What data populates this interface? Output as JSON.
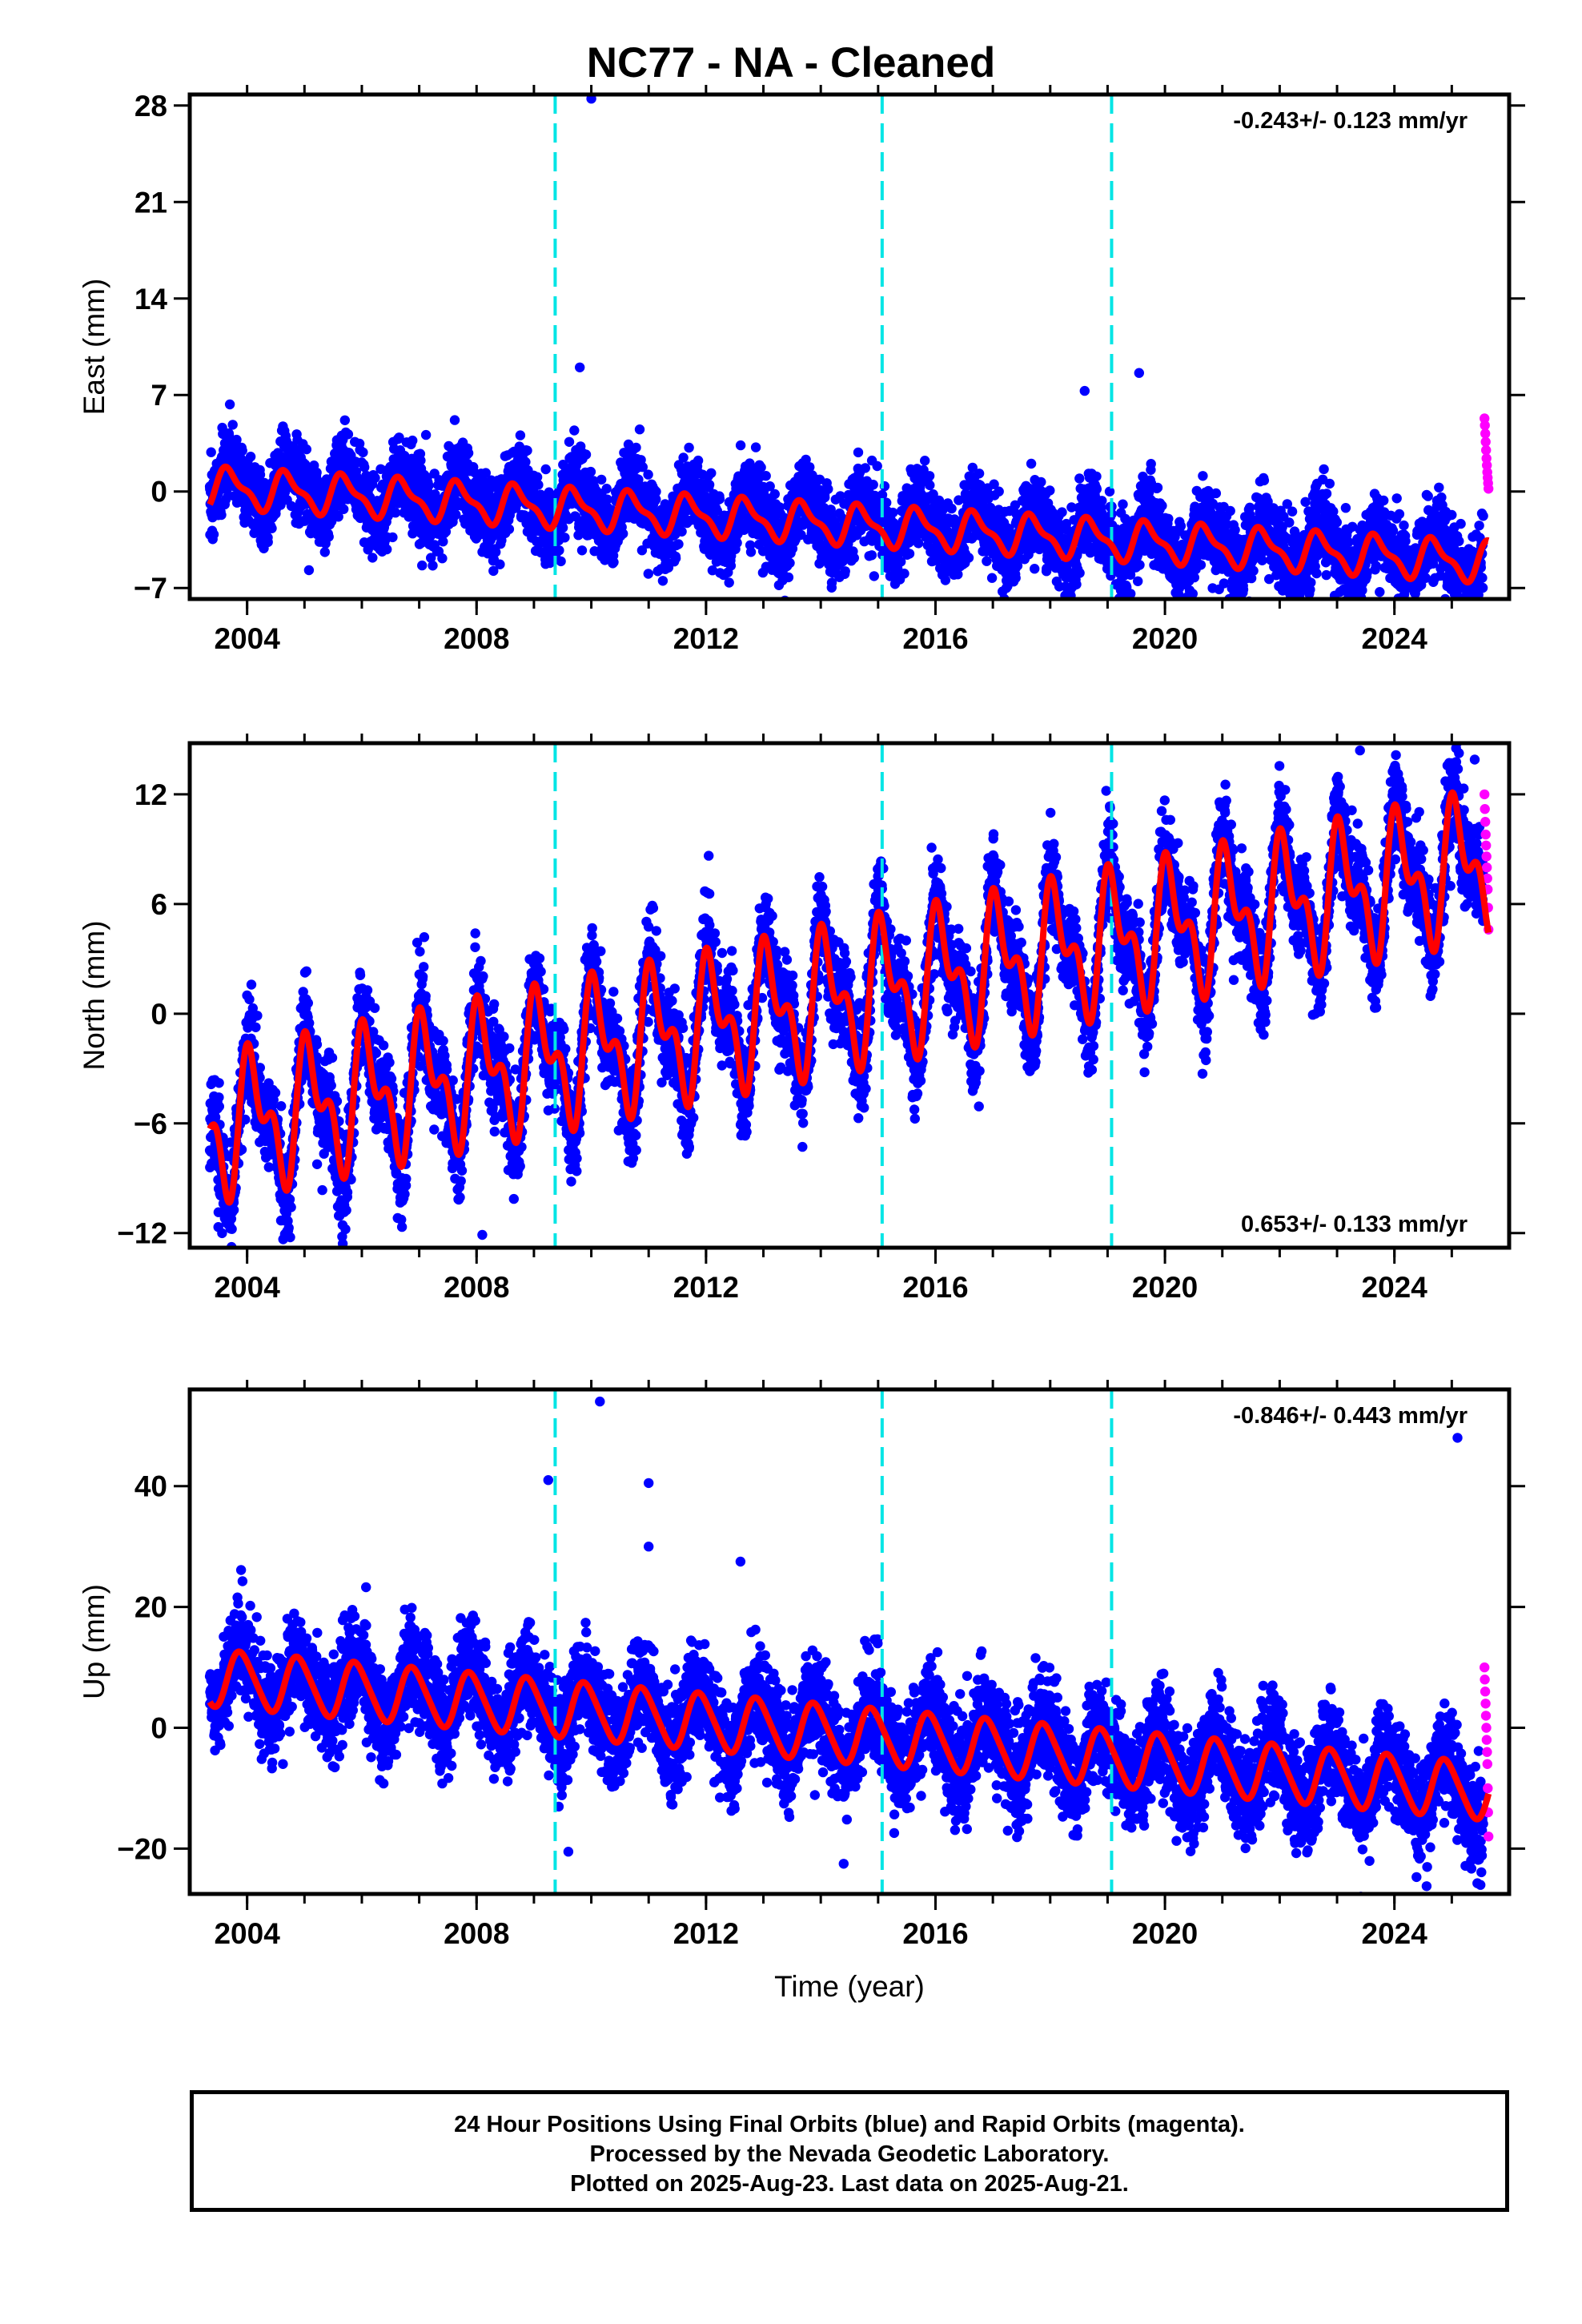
{
  "title": "NC77  - NA - Cleaned",
  "colors": {
    "final_orbits": "#0000ff",
    "rapid_orbits": "#ff00ff",
    "model_fit": "#ff0000",
    "equipment_change": "#00e5e5"
  },
  "chart_data": [
    {
      "type": "scatter",
      "panel": "east",
      "ylabel": "East (mm)",
      "xlabel": "",
      "xlim": [
        2003.0,
        2026.0
      ],
      "ylim": [
        -7.8,
        28.8
      ],
      "xticks": [
        2004,
        2008,
        2012,
        2016,
        2020,
        2024
      ],
      "yticks": [
        28,
        21,
        14,
        7,
        0,
        -7
      ],
      "ytick_labels": [
        "28",
        "21",
        "14",
        "7",
        "0",
        "−7"
      ],
      "rate_label": "-0.243+/- 0.123 mm/yr",
      "rate_position": "top-right",
      "equipment_changes": [
        2009.37,
        2015.07,
        2019.07
      ],
      "series": [
        {
          "role": "final_orbits",
          "start": 2003.35,
          "end": 2025.55,
          "trend": -0.243,
          "offset": 0.5,
          "seasonal_amp": 1.6,
          "seasonal_phase": 0.5,
          "sin2_amp": 0.4,
          "noise": 1.4,
          "outliers": [
            [
              2010.0,
              28.5
            ],
            [
              2009.8,
              9.0
            ],
            [
              2019.55,
              8.6
            ],
            [
              2018.6,
              7.3
            ],
            [
              2019.3,
              -7.2
            ]
          ]
        },
        {
          "role": "rapid_orbits",
          "start": 2025.57,
          "end": 2025.64,
          "values": [
            5.3,
            4.8,
            4.2,
            3.6,
            3.0,
            2.4,
            1.9,
            1.4,
            1.0,
            0.6,
            0.2
          ]
        }
      ],
      "fit": {
        "trend": -0.243,
        "offset": 0.3,
        "seasonal_amp": 1.3,
        "seasonal_phase": 0.55,
        "sin2_amp": 0.5
      }
    },
    {
      "type": "scatter",
      "panel": "north",
      "ylabel": "North (mm)",
      "xlabel": "",
      "xlim": [
        2003.0,
        2026.0
      ],
      "ylim": [
        -12.8,
        14.8
      ],
      "xticks": [
        2004,
        2008,
        2012,
        2016,
        2020,
        2024
      ],
      "yticks": [
        12,
        6,
        0,
        -6,
        -12
      ],
      "ytick_labels": [
        "12",
        "6",
        "0",
        "−6",
        "−12"
      ],
      "rate_label": "0.653+/- 0.133 mm/yr",
      "rate_position": "bottom-right",
      "equipment_changes": [
        2009.37,
        2015.07,
        2019.07
      ],
      "series": [
        {
          "role": "final_orbits",
          "start": 2003.35,
          "end": 2025.55,
          "trend": 0.653,
          "offset": -6.3,
          "seasonal_amp": 3.3,
          "seasonal_phase": 0.15,
          "sin2_amp": 1.8,
          "noise": 1.3,
          "outliers": [
            [
              2008.1,
              -12.1
            ],
            [
              2025.4,
              13.9
            ],
            [
              2023.4,
              14.4
            ]
          ]
        },
        {
          "role": "rapid_orbits",
          "start": 2025.57,
          "end": 2025.64,
          "values": [
            12.0,
            11.2,
            10.5,
            9.8,
            9.2,
            8.6,
            8.0,
            7.4,
            6.8,
            5.8,
            4.6
          ]
        }
      ],
      "fit": {
        "trend": 0.653,
        "offset": -6.3,
        "seasonal_amp": 3.0,
        "seasonal_phase": 0.15,
        "sin2_amp": 1.9
      }
    },
    {
      "type": "scatter",
      "panel": "up",
      "ylabel": "Up (mm)",
      "xlabel": "Time (year)",
      "xlim": [
        2003.0,
        2026.0
      ],
      "ylim": [
        -27.5,
        56.0
      ],
      "xticks": [
        2004,
        2008,
        2012,
        2016,
        2020,
        2024
      ],
      "yticks": [
        40,
        20,
        0,
        -20
      ],
      "ytick_labels": [
        "40",
        "20",
        "0",
        "−20"
      ],
      "rate_label": "-0.846+/- 0.443 mm/yr",
      "rate_position": "top-right",
      "equipment_changes": [
        2009.37,
        2015.07,
        2019.07
      ],
      "series": [
        {
          "role": "final_orbits",
          "start": 2003.35,
          "end": 2025.55,
          "trend": -0.846,
          "offset": 8.5,
          "seasonal_amp": 5.0,
          "seasonal_phase": 0.35,
          "sin2_amp": 0.6,
          "noise": 4.0,
          "outliers": [
            [
              2010.15,
              54.0
            ],
            [
              2009.25,
              41.0
            ],
            [
              2011.0,
              40.5
            ],
            [
              2011.0,
              30.0
            ],
            [
              2012.6,
              27.5
            ],
            [
              2025.1,
              48.0
            ],
            [
              2009.6,
              -20.5
            ],
            [
              2014.4,
              -22.5
            ],
            [
              2025.5,
              -26.0
            ]
          ]
        },
        {
          "role": "rapid_orbits",
          "start": 2025.57,
          "end": 2025.64,
          "values": [
            10.0,
            8.0,
            6.0,
            4.0,
            2.0,
            0.0,
            -2.0,
            -4.0,
            -6.0,
            -10.0,
            -14.0,
            -18.0
          ]
        }
      ],
      "fit": {
        "trend": -0.846,
        "offset": 8.3,
        "seasonal_amp": 4.6,
        "seasonal_phase": 0.35,
        "sin2_amp": 0.6
      }
    }
  ],
  "footer": {
    "line1": "24 Hour Positions Using Final Orbits (blue) and Rapid Orbits (magenta).",
    "line2": "Processed by the Nevada Geodetic Laboratory.",
    "line3": "Plotted on 2025-Aug-23. Last data on 2025-Aug-21."
  }
}
